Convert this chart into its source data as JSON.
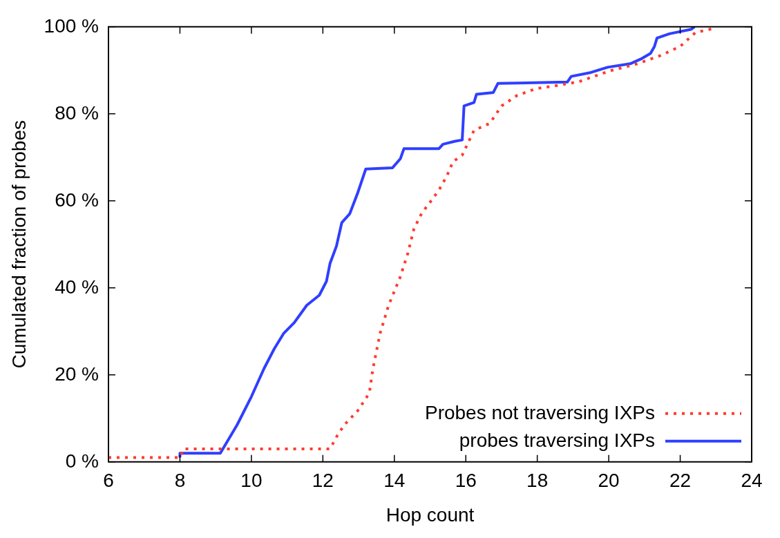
{
  "chart_data": {
    "type": "line",
    "xlabel": "Hop count",
    "ylabel": "Cumulated fraction of probes",
    "xlim": [
      6,
      24
    ],
    "xticks": [
      6,
      8,
      10,
      12,
      14,
      16,
      18,
      20,
      22,
      24
    ],
    "ylim": [
      0,
      100
    ],
    "yticks": [
      {
        "value": 0,
        "label": "0 %"
      },
      {
        "value": 20,
        "label": "20 %"
      },
      {
        "value": 40,
        "label": "40 %"
      },
      {
        "value": 60,
        "label": "60 %"
      },
      {
        "value": 80,
        "label": "80 %"
      },
      {
        "value": 100,
        "label": "100 %"
      }
    ],
    "grid": false,
    "legend": "bottom right",
    "marker": "none",
    "series": [
      {
        "name": "Probes not traversing IXPs",
        "color": "#ff3b30",
        "line_style": "dotted",
        "x": [
          6,
          8,
          8.1,
          12.2,
          12.4,
          12.6,
          12.97,
          13.3,
          13.4,
          13.6,
          13.84,
          14.16,
          14.38,
          14.55,
          14.77,
          15.03,
          15.25,
          15.47,
          15.64,
          15.9,
          16.23,
          16.67,
          17,
          17.43,
          17.97,
          18.63,
          19.17,
          20.04,
          20.8,
          21.45,
          22,
          22.43,
          22.87,
          23
        ],
        "values": [
          1,
          1,
          3,
          3,
          6,
          8.5,
          11.7,
          15.8,
          21.4,
          29.5,
          36,
          42.4,
          48,
          53.6,
          57.2,
          60,
          62.5,
          65.7,
          69,
          70.5,
          76.2,
          77.8,
          81.8,
          84.2,
          85.8,
          86.6,
          87.4,
          89.9,
          91.5,
          93.4,
          95.5,
          98.7,
          99.5,
          100
        ]
      },
      {
        "name": "probes traversing IXPs",
        "color": "#2f3fff",
        "line_style": "solid",
        "x": [
          8,
          8,
          9.13,
          9.6,
          10,
          10.35,
          10.64,
          10.9,
          11.2,
          11.55,
          11.9,
          12.1,
          12.2,
          12.38,
          12.53,
          12.75,
          12.97,
          13.2,
          13.95,
          14.17,
          14.27,
          15.25,
          15.36,
          15.7,
          15.9,
          15.95,
          16.23,
          16.3,
          16.77,
          16.9,
          18.84,
          18.95,
          19.5,
          19.97,
          20.6,
          20.9,
          21.17,
          21.28,
          21.35,
          21.7,
          22.3,
          22.4
        ],
        "values": [
          1,
          2,
          2,
          8.5,
          15,
          21.4,
          26,
          29.5,
          32,
          36,
          38.3,
          41.5,
          45.6,
          49.6,
          55,
          57,
          61.7,
          67.3,
          67.6,
          69.7,
          72,
          72,
          73,
          73.7,
          74,
          81.8,
          82.6,
          84.5,
          84.9,
          87,
          87.3,
          88.6,
          89.5,
          90.7,
          91.5,
          92.6,
          93.9,
          95.5,
          97.4,
          98.4,
          99.4,
          100
        ]
      }
    ]
  }
}
